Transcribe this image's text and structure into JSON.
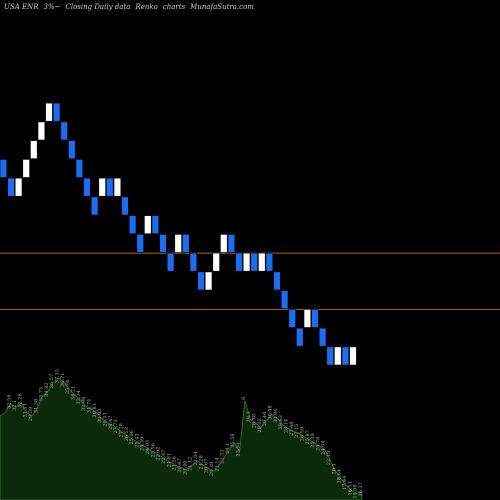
{
  "header": {
    "symbol": "USA ENR",
    "change": "3%~",
    "chart_kind": "Closing Daily data",
    "chart_style": "Renko",
    "chart_word": "charts",
    "site": "MunafaSutra.com"
  },
  "colors": {
    "background": "#000000",
    "brick_up": "#ffffff",
    "brick_down": "#1e6cf0",
    "brick_border": "#000000",
    "level_line": "#b5651d",
    "volume_fill": "#0b2a0b",
    "volume_line": "#3a7a2a",
    "volume_label": "#b0b0b0"
  },
  "chart_data": {
    "type": "renko",
    "price_ylim": [
      26.5,
      34.5
    ],
    "bricks": [
      {
        "dir": "down",
        "value": 31.8
      },
      {
        "dir": "down",
        "value": 31.5
      },
      {
        "dir": "up",
        "value": 31.5
      },
      {
        "dir": "up",
        "value": 31.8
      },
      {
        "dir": "up",
        "value": 32.1
      },
      {
        "dir": "up",
        "value": 32.4
      },
      {
        "dir": "up",
        "value": 32.7
      },
      {
        "dir": "down",
        "value": 32.7
      },
      {
        "dir": "down",
        "value": 32.4
      },
      {
        "dir": "down",
        "value": 32.1
      },
      {
        "dir": "down",
        "value": 31.8
      },
      {
        "dir": "down",
        "value": 31.5
      },
      {
        "dir": "down",
        "value": 31.2
      },
      {
        "dir": "up",
        "value": 31.5
      },
      {
        "dir": "down",
        "value": 31.5
      },
      {
        "dir": "up",
        "value": 31.5
      },
      {
        "dir": "down",
        "value": 31.2
      },
      {
        "dir": "down",
        "value": 30.9
      },
      {
        "dir": "down",
        "value": 30.6
      },
      {
        "dir": "up",
        "value": 30.9
      },
      {
        "dir": "down",
        "value": 30.9
      },
      {
        "dir": "down",
        "value": 30.6
      },
      {
        "dir": "down",
        "value": 30.3
      },
      {
        "dir": "up",
        "value": 30.6
      },
      {
        "dir": "down",
        "value": 30.6
      },
      {
        "dir": "down",
        "value": 30.3
      },
      {
        "dir": "down",
        "value": 30.0
      },
      {
        "dir": "up",
        "value": 30.0
      },
      {
        "dir": "up",
        "value": 30.3
      },
      {
        "dir": "up",
        "value": 30.6
      },
      {
        "dir": "down",
        "value": 30.6
      },
      {
        "dir": "down",
        "value": 30.3
      },
      {
        "dir": "up",
        "value": 30.3
      },
      {
        "dir": "down",
        "value": 30.3
      },
      {
        "dir": "up",
        "value": 30.3
      },
      {
        "dir": "down",
        "value": 30.3
      },
      {
        "dir": "down",
        "value": 30.0
      },
      {
        "dir": "down",
        "value": 29.7
      },
      {
        "dir": "down",
        "value": 29.4
      },
      {
        "dir": "down",
        "value": 29.1
      },
      {
        "dir": "up",
        "value": 29.4
      },
      {
        "dir": "down",
        "value": 29.4
      },
      {
        "dir": "down",
        "value": 29.1
      },
      {
        "dir": "down",
        "value": 28.8
      },
      {
        "dir": "up",
        "value": 28.8
      },
      {
        "dir": "down",
        "value": 28.8
      },
      {
        "dir": "up",
        "value": 28.8
      }
    ],
    "levels": [
      30.45,
      29.55
    ],
    "volume_ylim": [
      15,
      39
    ],
    "volume": [
      {
        "value": 30.5,
        "label": ""
      },
      {
        "value": 31.2,
        "label": ""
      },
      {
        "value": 32.8,
        "label": "32.56"
      },
      {
        "value": 32.1,
        "label": "32.1"
      },
      {
        "value": 33.0,
        "label": "32.26"
      },
      {
        "value": 31.2,
        "label": "31.11"
      },
      {
        "value": 30.5,
        "label": "29.59"
      },
      {
        "value": 32.0,
        "label": "31.58"
      },
      {
        "value": 34.2,
        "label": "33.75"
      },
      {
        "value": 35.0,
        "label": "34.82"
      },
      {
        "value": 36.6,
        "label": "36.57"
      },
      {
        "value": 37.5,
        "label": "37.15"
      },
      {
        "value": 36.8,
        "label": "36.71"
      },
      {
        "value": 35.5,
        "label": "35.74"
      },
      {
        "value": 34.4,
        "label": "34.21"
      },
      {
        "value": 33.6,
        "label": "33.34"
      },
      {
        "value": 32.4,
        "label": "32.08"
      },
      {
        "value": 32.0,
        "label": "31.74"
      },
      {
        "value": 31.2,
        "label": "30.81"
      },
      {
        "value": 30.2,
        "label": "30.03"
      },
      {
        "value": 29.5,
        "label": "29.33"
      },
      {
        "value": 28.9,
        "label": "28.47"
      },
      {
        "value": 28.2,
        "label": "27.73"
      },
      {
        "value": 27.5,
        "label": "27.28"
      },
      {
        "value": 26.8,
        "label": "26.53"
      },
      {
        "value": 26.2,
        "label": "25.96"
      },
      {
        "value": 25.6,
        "label": "25.43"
      },
      {
        "value": 25.0,
        "label": "24.59"
      },
      {
        "value": 24.4,
        "label": "24.05"
      },
      {
        "value": 23.8,
        "label": "23.56"
      },
      {
        "value": 23.2,
        "label": "22.92"
      },
      {
        "value": 22.6,
        "label": "22.47"
      },
      {
        "value": 22.0,
        "label": "21.81"
      },
      {
        "value": 21.4,
        "label": "21.26"
      },
      {
        "value": 21.0,
        "label": "20.87"
      },
      {
        "value": 20.6,
        "label": "20.40"
      },
      {
        "value": 21.3,
        "label": "21.12"
      },
      {
        "value": 22.3,
        "label": "22.04"
      },
      {
        "value": 21.6,
        "label": "21.28"
      },
      {
        "value": 20.9,
        "label": "20.67"
      },
      {
        "value": 20.4,
        "label": "20.29"
      },
      {
        "value": 21.2,
        "label": "21.14"
      },
      {
        "value": 22.6,
        "label": "22.33"
      },
      {
        "value": 24.2,
        "label": "24.1"
      },
      {
        "value": 25.6,
        "label": "25.58"
      },
      {
        "value": 24.0,
        "label": "23.91"
      },
      {
        "value": 33.4,
        "label": "6"
      },
      {
        "value": 30.0,
        "label": "29.1"
      },
      {
        "value": 29.2,
        "label": "28.78"
      },
      {
        "value": 28.4,
        "label": "28.02"
      },
      {
        "value": 29.6,
        "label": "29.44"
      },
      {
        "value": 30.8,
        "label": "30.48"
      },
      {
        "value": 30.2,
        "label": "30.06"
      },
      {
        "value": 29.0,
        "label": "28.63"
      },
      {
        "value": 28.3,
        "label": "28.14"
      },
      {
        "value": 27.8,
        "label": "27.48"
      },
      {
        "value": 27.4,
        "label": "27.15"
      },
      {
        "value": 26.8,
        "label": "26.59"
      },
      {
        "value": 26.2,
        "label": "25.87"
      },
      {
        "value": 25.6,
        "label": "25.39"
      },
      {
        "value": 25.0,
        "label": "24.78"
      },
      {
        "value": 24.3,
        "label": "24.04"
      },
      {
        "value": 22.4,
        "label": "22.19"
      },
      {
        "value": 20.4,
        "label": "20.1"
      },
      {
        "value": 19.0,
        "label": "18.64"
      },
      {
        "value": 17.8,
        "label": "17.44"
      },
      {
        "value": 16.8,
        "label": "16.51"
      },
      {
        "value": 16.2,
        "label": "15.98"
      },
      {
        "value": 16.6,
        "label": "16.37"
      }
    ]
  }
}
